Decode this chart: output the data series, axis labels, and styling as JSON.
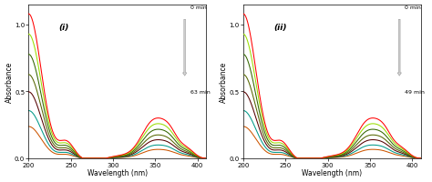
{
  "xlim": [
    200,
    410
  ],
  "ylim": [
    0.0,
    1.15
  ],
  "yticks": [
    0.0,
    0.5,
    1.0
  ],
  "xticks": [
    200,
    250,
    300,
    350,
    400
  ],
  "xlabel": "Wavelength (nm)",
  "ylabel": "Absorbance",
  "label_i": "(i)",
  "label_ii": "(ii)",
  "arrow_label_top": "0 min",
  "arrow_label_bottom_i": "63 min",
  "arrow_label_bottom_ii": "49 min",
  "colors": [
    "#ff0000",
    "#99dd00",
    "#336600",
    "#556600",
    "#550000",
    "#009988",
    "#cc5500"
  ],
  "scales_i": [
    1.0,
    0.86,
    0.72,
    0.58,
    0.46,
    0.33,
    0.22
  ],
  "scales_ii": [
    1.0,
    0.86,
    0.72,
    0.58,
    0.46,
    0.33,
    0.22
  ],
  "background": "#ffffff",
  "figsize": [
    4.74,
    2.01
  ],
  "dpi": 100
}
